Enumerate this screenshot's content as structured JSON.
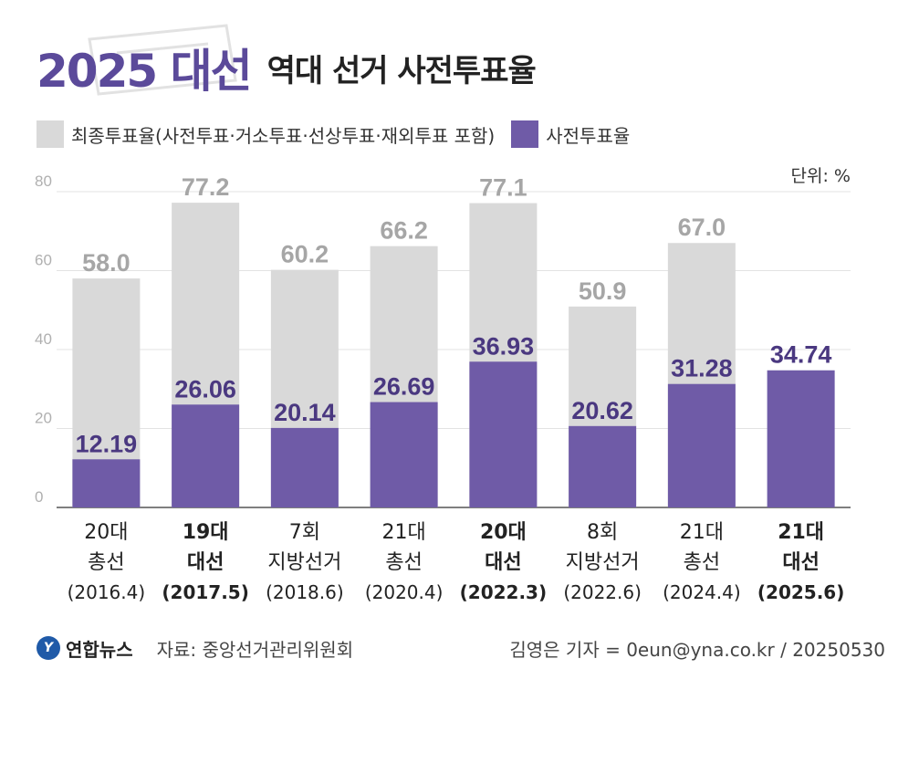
{
  "header": {
    "title_main": "2025 대선",
    "title_sub": "역대 선거 사전투표율"
  },
  "legend": {
    "final_label": "최종투표율(사전투표·거소투표·선상투표·재외투표 포함)",
    "early_label": "사전투표율"
  },
  "unit": "단위: %",
  "footer": {
    "logo_text": "연합뉴스",
    "source": "자료: 중앙선거관리위원회",
    "credit": "김영은 기자 = 0eun@yna.co.kr / 20250530"
  },
  "colors": {
    "final": "#d9d9d9",
    "early": "#6f5ba7",
    "final_label": "#a6a6a6",
    "early_label": "#4a3880",
    "brand": "#5b4a9a"
  },
  "chart_data": {
    "type": "bar",
    "ylim": [
      0,
      80
    ],
    "yticks": [
      "0",
      "20",
      "40",
      "60",
      "80"
    ],
    "grid": true,
    "categories": [
      {
        "lines": [
          "20대",
          "총선",
          "(2016.4)"
        ],
        "bold": false
      },
      {
        "lines": [
          "19대",
          "대선",
          "(2017.5)"
        ],
        "bold": true
      },
      {
        "lines": [
          "7회",
          "지방선거",
          "(2018.6)"
        ],
        "bold": false
      },
      {
        "lines": [
          "21대",
          "총선",
          "(2020.4)"
        ],
        "bold": false
      },
      {
        "lines": [
          "20대",
          "대선",
          "(2022.3)"
        ],
        "bold": true
      },
      {
        "lines": [
          "8회",
          "지방선거",
          "(2022.6)"
        ],
        "bold": false
      },
      {
        "lines": [
          "21대",
          "총선",
          "(2024.4)"
        ],
        "bold": false
      },
      {
        "lines": [
          "21대",
          "대선",
          "(2025.6)"
        ],
        "bold": true
      }
    ],
    "series": [
      {
        "name": "최종투표율(사전투표·거소투표·선상투표·재외투표 포함)",
        "values": [
          58.0,
          77.2,
          60.2,
          66.2,
          77.1,
          50.9,
          67.0,
          null
        ],
        "labels": [
          "58.0",
          "77.2",
          "60.2",
          "66.2",
          "77.1",
          "50.9",
          "67.0",
          ""
        ]
      },
      {
        "name": "사전투표율",
        "values": [
          12.19,
          26.06,
          20.14,
          26.69,
          36.93,
          20.62,
          31.28,
          34.74
        ],
        "labels": [
          "12.19",
          "26.06",
          "20.14",
          "26.69",
          "36.93",
          "20.62",
          "31.28",
          "34.74"
        ]
      }
    ]
  }
}
